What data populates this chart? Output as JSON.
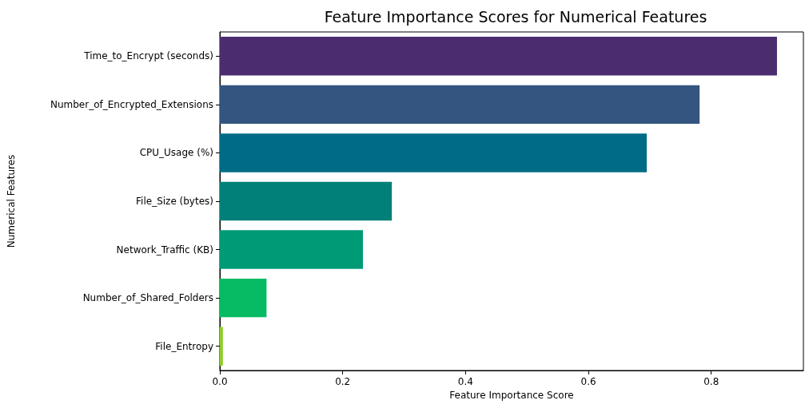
{
  "chart_data": {
    "type": "bar",
    "orientation": "horizontal",
    "title": "Feature Importance Scores for Numerical Features",
    "xlabel": "Feature Importance Score",
    "ylabel": "Numerical Features",
    "categories": [
      "Time_to_Encrypt (seconds)",
      "Number_of_Encrypted_Extensions",
      "CPU_Usage (%)",
      "File_Size (bytes)",
      "Network_Traffic (KB)",
      "Number_of_Shared_Folders",
      "File_Entropy"
    ],
    "values": [
      0.907,
      0.781,
      0.695,
      0.28,
      0.233,
      0.076,
      0.005
    ],
    "colors": [
      "#4b2d6f",
      "#33557f",
      "#006b85",
      "#008078",
      "#009a77",
      "#06bb63",
      "#8fcc2a"
    ],
    "xlim": [
      0,
      0.95
    ],
    "xticks": [
      {
        "value": 0,
        "label": "0.0"
      },
      {
        "value": 0.2,
        "label": "0.2"
      },
      {
        "value": 0.4,
        "label": "0.4"
      },
      {
        "value": 0.6,
        "label": "0.6"
      },
      {
        "value": 0.8,
        "label": "0.8"
      }
    ],
    "grid": false
  }
}
